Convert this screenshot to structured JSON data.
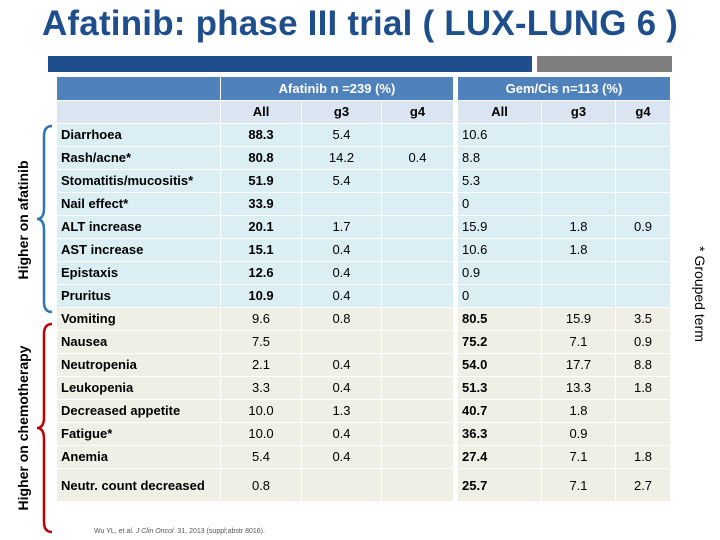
{
  "title": "Afatinib: phase III trial ( LUX-LUNG 6 )",
  "colors": {
    "title": "#1f4e8c",
    "header": "#4f81bd",
    "afatinib_rows": "#dbeef4",
    "chemo_rows": "#f0efe6",
    "bracket_afatinib": "#2e75b6",
    "bracket_chemo": "#c00000"
  },
  "table": {
    "group_afatinib": "Afatinib n =239  (%)",
    "group_gemcis": "Gem/Cis n=113 (%)",
    "sub": [
      "All",
      "g3",
      "g4",
      "All",
      "g3",
      "g4"
    ],
    "rows": [
      {
        "name": "Diarrhoea",
        "vals": [
          "88.3",
          "5.4",
          "",
          "10.6",
          "",
          ""
        ]
      },
      {
        "name": "Rash/acne*",
        "vals": [
          "80.8",
          "14.2",
          "0.4",
          "8.8",
          "",
          ""
        ]
      },
      {
        "name": "Stomatitis/mucositis*",
        "vals": [
          "51.9",
          "5.4",
          "",
          "5.3",
          "",
          ""
        ]
      },
      {
        "name": "Nail effect*",
        "vals": [
          "33.9",
          "",
          "",
          "0",
          "",
          ""
        ]
      },
      {
        "name": "ALT  increase",
        "vals": [
          "20.1",
          "1.7",
          "",
          "15.9",
          "1.8",
          "0.9"
        ]
      },
      {
        "name": "AST  increase",
        "vals": [
          "15.1",
          "0.4",
          "",
          "10.6",
          "1.8",
          ""
        ]
      },
      {
        "name": "Epistaxis",
        "vals": [
          "12.6",
          "0.4",
          "",
          "0.9",
          "",
          ""
        ]
      },
      {
        "name": "Pruritus",
        "vals": [
          "10.9",
          "0.4",
          "",
          "0",
          "",
          ""
        ]
      },
      {
        "name": "Vomiting",
        "vals": [
          "9.6",
          "0.8",
          "",
          "80.5",
          "15.9",
          "3.5"
        ]
      },
      {
        "name": "Nausea",
        "vals": [
          "7.5",
          "",
          "",
          "75.2",
          "7.1",
          "0.9"
        ]
      },
      {
        "name": "Neutropenia",
        "vals": [
          "2.1",
          "0.4",
          "",
          "54.0",
          "17.7",
          "8.8"
        ]
      },
      {
        "name": "Leukopenia",
        "vals": [
          "3.3",
          "0.4",
          "",
          "51.3",
          "13.3",
          "1.8"
        ]
      },
      {
        "name": "Decreased appetite",
        "vals": [
          "10.0",
          "1.3",
          "",
          "40.7",
          "1.8",
          ""
        ]
      },
      {
        "name": "Fatigue*",
        "vals": [
          "10.0",
          "0.4",
          "",
          "36.3",
          "0.9",
          ""
        ]
      },
      {
        "name": "Anemia",
        "vals": [
          "5.4",
          "0.4",
          "",
          "27.4",
          "7.1",
          "1.8"
        ]
      },
      {
        "name": "Neutr. count decreased",
        "vals": [
          "0.8",
          "",
          "",
          "25.7",
          "7.1",
          "2.7"
        ]
      }
    ]
  },
  "side_labels": {
    "afatinib": "Higher on afatinib",
    "chemo": "Higher on chemotherapy"
  },
  "note": "* Grouped term",
  "citation": {
    "prefix": "Wu YL, et al. ",
    "journal": "J Clin Oncol.",
    "rest": " 31, 2013 (suppl;abstr 8016)."
  }
}
